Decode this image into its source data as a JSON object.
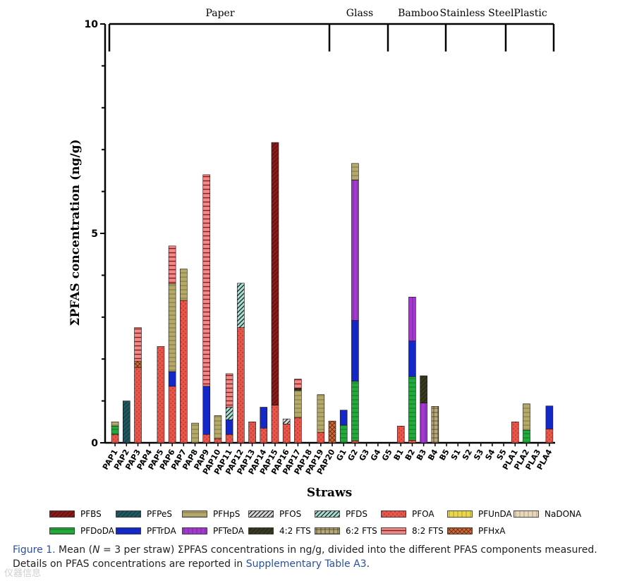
{
  "chart_data": {
    "type": "stacked-bar",
    "ylabel": "ΣPFAS concentration (ng/g)",
    "xlabel": "Straws",
    "ylim": [
      0,
      10
    ],
    "yticks": [
      "0",
      "5",
      "10"
    ],
    "categories": [
      "PAP1",
      "PAP2",
      "PAP3",
      "PAP4",
      "PAP5",
      "PAP6",
      "PAP7",
      "PAP8",
      "PAP9",
      "PAP10",
      "PAP11",
      "PAP12",
      "PAP13",
      "PAP14",
      "PAP15",
      "PAP16",
      "PAP17",
      "PAP18",
      "PAP19",
      "PAP20",
      "G1",
      "G2",
      "G3",
      "G4",
      "G5",
      "B1",
      "B2",
      "B3",
      "B4",
      "B5",
      "S1",
      "S2",
      "S3",
      "S4",
      "S5",
      "PLA1",
      "PLA2",
      "PLA3",
      "PLA4"
    ],
    "groups": [
      {
        "label": "Paper",
        "from": 0,
        "to": 19
      },
      {
        "label": "Glass",
        "from": 20,
        "to": 24
      },
      {
        "label": "Bamboo",
        "from": 25,
        "to": 29
      },
      {
        "label": "Stainless Steel",
        "from": 30,
        "to": 34
      },
      {
        "label": "Plastic",
        "from": 35,
        "to": 38
      }
    ],
    "series": [
      {
        "name": "PFBS",
        "color": "#8b1a1a",
        "pattern": "diag-dark-red"
      },
      {
        "name": "PFPeS",
        "color": "#1f5a63",
        "pattern": "diag-teal"
      },
      {
        "name": "PFHpS",
        "color": "#b5a96a",
        "pattern": "hlines-tan"
      },
      {
        "name": "PFOS",
        "color": "#d9d9d9",
        "pattern": "diag-light"
      },
      {
        "name": "PFDS",
        "color": "#a8e0d4",
        "pattern": "diag-mint"
      },
      {
        "name": "PFOA",
        "color": "#e8564a",
        "pattern": "dots-red"
      },
      {
        "name": "PFUnDA",
        "color": "#e8d84a",
        "pattern": "vlines-yellow"
      },
      {
        "name": "NaDONA",
        "color": "#e8d8b8",
        "pattern": "vlines-beige"
      },
      {
        "name": "PFDoDA",
        "color": "#22aa3a",
        "pattern": "hlines-green"
      },
      {
        "name": "PFTrDA",
        "color": "#1428c8",
        "pattern": "solid-blue"
      },
      {
        "name": "PFTeDA",
        "color": "#a23ad0",
        "pattern": "vlines-purple"
      },
      {
        "name": "4:2 FTS",
        "color": "#3a3a20",
        "pattern": "diag-olive"
      },
      {
        "name": "6:2 FTS",
        "color": "#b8a880",
        "pattern": "grid-tan"
      },
      {
        "name": "8:2 FTS",
        "color": "#f08a8a",
        "pattern": "hstripe-pink"
      },
      {
        "name": "PFHxA",
        "color": "#c86a3a",
        "pattern": "cross-orange"
      }
    ],
    "stacks": [
      [
        [
          "PFOA",
          0.2
        ],
        [
          "PFDoDA",
          0.2
        ],
        [
          "PFHpS",
          0.1
        ]
      ],
      [
        [
          "PFPeS",
          1.0
        ]
      ],
      [
        [
          "PFOA",
          1.8
        ],
        [
          "PFHxA",
          0.15
        ],
        [
          "8:2 FTS",
          0.8
        ]
      ],
      [],
      [
        [
          "PFOA",
          2.3
        ]
      ],
      [
        [
          "PFOA",
          1.35
        ],
        [
          "PFTrDA",
          0.35
        ],
        [
          "PFHpS",
          2.1
        ],
        [
          "8:2 FTS",
          0.9
        ]
      ],
      [
        [
          "PFOA",
          3.4
        ],
        [
          "PFHpS",
          0.75
        ]
      ],
      [
        [
          "PFHpS",
          0.47
        ]
      ],
      [
        [
          "PFOA",
          0.2
        ],
        [
          "PFTrDA",
          1.15
        ],
        [
          "8:2 FTS",
          5.05
        ]
      ],
      [
        [
          "PFOA",
          0.1
        ],
        [
          "PFHpS",
          0.55
        ]
      ],
      [
        [
          "PFOA",
          0.2
        ],
        [
          "PFTrDA",
          0.35
        ],
        [
          "PFDS",
          0.3
        ],
        [
          "8:2 FTS",
          0.8
        ]
      ],
      [
        [
          "PFOA",
          2.75
        ],
        [
          "PFDS",
          1.06
        ]
      ],
      [
        [
          "PFOA",
          0.5
        ]
      ],
      [
        [
          "PFOA",
          0.35
        ],
        [
          "PFTrDA",
          0.5
        ]
      ],
      [
        [
          "PFOA",
          0.9
        ],
        [
          "PFBS",
          6.27
        ]
      ],
      [
        [
          "PFOA",
          0.45
        ],
        [
          "PFOS",
          0.12
        ]
      ],
      [
        [
          "PFOA",
          0.6
        ],
        [
          "PFHpS",
          0.65
        ],
        [
          "4:2 FTS",
          0.05
        ],
        [
          "8:2 FTS",
          0.22
        ]
      ],
      [],
      [
        [
          "PFOA",
          0.25
        ],
        [
          "PFHpS",
          0.9
        ]
      ],
      [
        [
          "PFHxA",
          0.52
        ]
      ],
      [
        [
          "PFDoDA",
          0.42
        ],
        [
          "PFTrDA",
          0.36
        ]
      ],
      [
        [
          "PFOA",
          0.05
        ],
        [
          "PFDoDA",
          1.42
        ],
        [
          "PFTrDA",
          1.45
        ],
        [
          "PFTeDA",
          3.35
        ],
        [
          "PFHpS",
          0.4
        ]
      ],
      [],
      [],
      [],
      [
        [
          "PFOA",
          0.4
        ]
      ],
      [
        [
          "PFOA",
          0.06
        ],
        [
          "PFDoDA",
          1.52
        ],
        [
          "PFTrDA",
          0.85
        ],
        [
          "PFTeDA",
          1.05
        ]
      ],
      [
        [
          "PFTeDA",
          0.95
        ],
        [
          "4:2 FTS",
          0.65
        ]
      ],
      [
        [
          "6:2 FTS",
          0.87
        ]
      ],
      [],
      [],
      [],
      [],
      [],
      [],
      [
        [
          "PFOA",
          0.5
        ]
      ],
      [
        [
          "PFDoDA",
          0.3
        ],
        [
          "PFHpS",
          0.63
        ]
      ],
      [],
      [
        [
          "PFOA",
          0.33
        ],
        [
          "PFTrDA",
          0.55
        ]
      ]
    ]
  },
  "legend": {
    "rows": [
      [
        "PFBS",
        "PFPeS",
        "PFHpS",
        "PFOS",
        "PFDS",
        "PFOA",
        "PFUnDA",
        "NaDONA"
      ],
      [
        "PFDoDA",
        "PFTrDA",
        "PFTeDA",
        "4:2 FTS",
        "6:2 FTS",
        "8:2 FTS",
        "PFHxA"
      ]
    ]
  },
  "caption": {
    "label": "Figure 1.",
    "text_before": " Mean (",
    "n_label": "N",
    "text_mid": " = 3 per straw) ΣPFAS concentrations in ng/g, divided into the different PFAS components measured. Details on PFAS concentrations are reported in ",
    "link": "Supplementary Table A3",
    "text_after": "."
  },
  "watermark": "仪器信息"
}
